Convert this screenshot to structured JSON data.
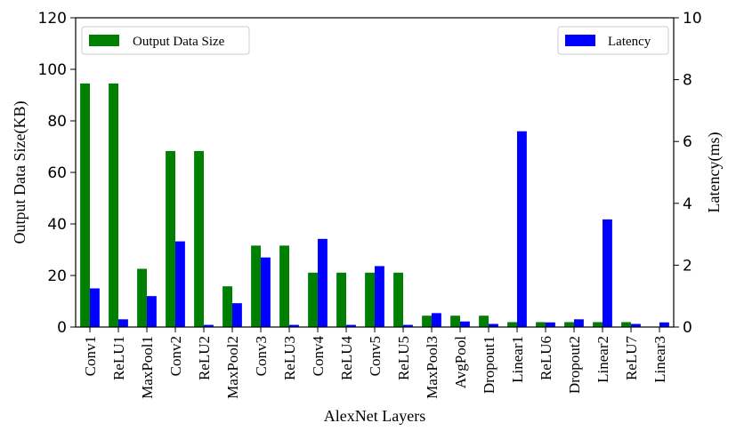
{
  "chart_data": {
    "type": "bar",
    "xlabel": "AlexNet Layers",
    "ylabel_left": "Output Data Size(KB)",
    "ylabel_right": "Latency(ms)",
    "ylim_left": [
      0,
      120
    ],
    "ylim_right": [
      0,
      10
    ],
    "yticks_left": [
      0,
      20,
      40,
      60,
      80,
      100,
      120
    ],
    "yticks_right": [
      0,
      2,
      4,
      6,
      8,
      10
    ],
    "grid": false,
    "categories": [
      "Conv1",
      "ReLU1",
      "MaxPool1",
      "Conv2",
      "ReLU2",
      "MaxPool2",
      "Conv3",
      "ReLU3",
      "Conv4",
      "ReLU4",
      "Conv5",
      "ReLU5",
      "MaxPool3",
      "AvgPool",
      "Dropout1",
      "Linear1",
      "ReLU6",
      "Dropout2",
      "Linear2",
      "ReLU7",
      "Linear3"
    ],
    "series": [
      {
        "name": "Output Data Size",
        "axis": "left",
        "color": "#008000",
        "values": [
          94.5,
          94.5,
          22.6,
          68.3,
          68.3,
          15.8,
          31.6,
          31.6,
          21.1,
          21.1,
          21.1,
          21.1,
          4.4,
          4.4,
          4.4,
          1.9,
          1.9,
          1.9,
          1.9,
          1.9,
          0
        ]
      },
      {
        "name": "Latency",
        "axis": "right",
        "color": "#0000ff",
        "values": [
          1.25,
          0.25,
          1.0,
          2.77,
          0.07,
          0.77,
          2.25,
          0.07,
          2.85,
          0.07,
          1.97,
          0.07,
          0.45,
          0.18,
          0.1,
          6.33,
          0.15,
          0.25,
          3.48,
          0.1,
          0.15
        ]
      }
    ],
    "legends": [
      {
        "label": "Output Data Size",
        "placement": "upper-left"
      },
      {
        "label": "Latency",
        "placement": "upper-right"
      }
    ]
  }
}
